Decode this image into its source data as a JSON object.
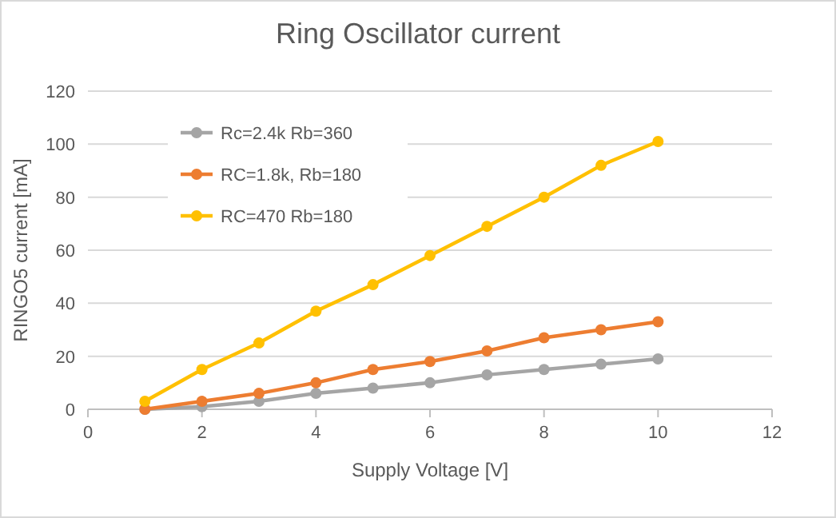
{
  "chart_data": {
    "type": "line",
    "title": "Ring Oscillator current",
    "xlabel": "Supply Voltage [V]",
    "ylabel": "RINGO5 current [mA]",
    "x": [
      1,
      2,
      3,
      4,
      5,
      6,
      7,
      8,
      9,
      10
    ],
    "series": [
      {
        "name": "Rc=2.4k Rb=360",
        "color": "#a5a5a5",
        "values": [
          0,
          1,
          3,
          6,
          8,
          10,
          13,
          15,
          17,
          19
        ]
      },
      {
        "name": "RC=1.8k, Rb=180",
        "color": "#ed7d31",
        "values": [
          0,
          3,
          6,
          10,
          15,
          18,
          22,
          27,
          30,
          33
        ]
      },
      {
        "name": "RC=470 Rb=180",
        "color": "#ffc000",
        "values": [
          3,
          15,
          25,
          37,
          47,
          58,
          69,
          80,
          92,
          101
        ]
      }
    ],
    "xlim": [
      0,
      12
    ],
    "xticks": [
      0,
      2,
      4,
      6,
      8,
      10,
      12
    ],
    "ylim": [
      0,
      120
    ],
    "yticks": [
      0,
      20,
      40,
      60,
      80,
      100,
      120
    ],
    "grid": "y",
    "legend": "top left",
    "marker": "circle",
    "line_style": "solid"
  }
}
